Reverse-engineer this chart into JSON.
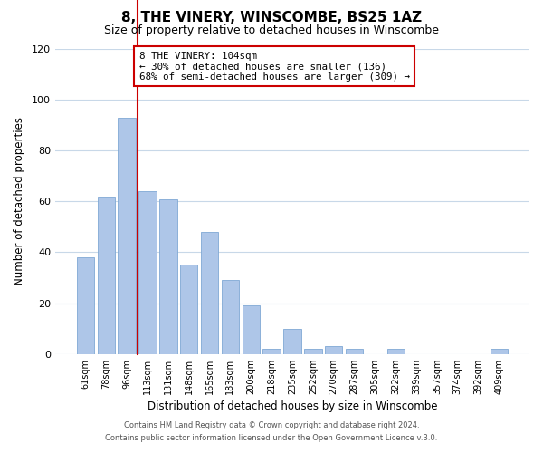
{
  "title": "8, THE VINERY, WINSCOMBE, BS25 1AZ",
  "subtitle": "Size of property relative to detached houses in Winscombe",
  "xlabel": "Distribution of detached houses by size in Winscombe",
  "ylabel": "Number of detached properties",
  "bar_labels": [
    "61sqm",
    "78sqm",
    "96sqm",
    "113sqm",
    "131sqm",
    "148sqm",
    "165sqm",
    "183sqm",
    "200sqm",
    "218sqm",
    "235sqm",
    "252sqm",
    "270sqm",
    "287sqm",
    "305sqm",
    "322sqm",
    "339sqm",
    "357sqm",
    "374sqm",
    "392sqm",
    "409sqm"
  ],
  "bar_values": [
    38,
    62,
    93,
    64,
    61,
    35,
    48,
    29,
    19,
    2,
    10,
    2,
    3,
    2,
    0,
    2,
    0,
    0,
    0,
    0,
    2
  ],
  "bar_color": "#aec6e8",
  "bar_edge_color": "#7fa8d4",
  "vline_color": "#cc0000",
  "vline_x": 2.5,
  "ylim": [
    0,
    120
  ],
  "yticks": [
    0,
    20,
    40,
    60,
    80,
    100,
    120
  ],
  "annotation_title": "8 THE VINERY: 104sqm",
  "annotation_line1": "← 30% of detached houses are smaller (136)",
  "annotation_line2": "68% of semi-detached houses are larger (309) →",
  "annotation_box_color": "#cc0000",
  "footer_line1": "Contains HM Land Registry data © Crown copyright and database right 2024.",
  "footer_line2": "Contains public sector information licensed under the Open Government Licence v.3.0.",
  "background_color": "#ffffff",
  "grid_color": "#c8d8e8"
}
